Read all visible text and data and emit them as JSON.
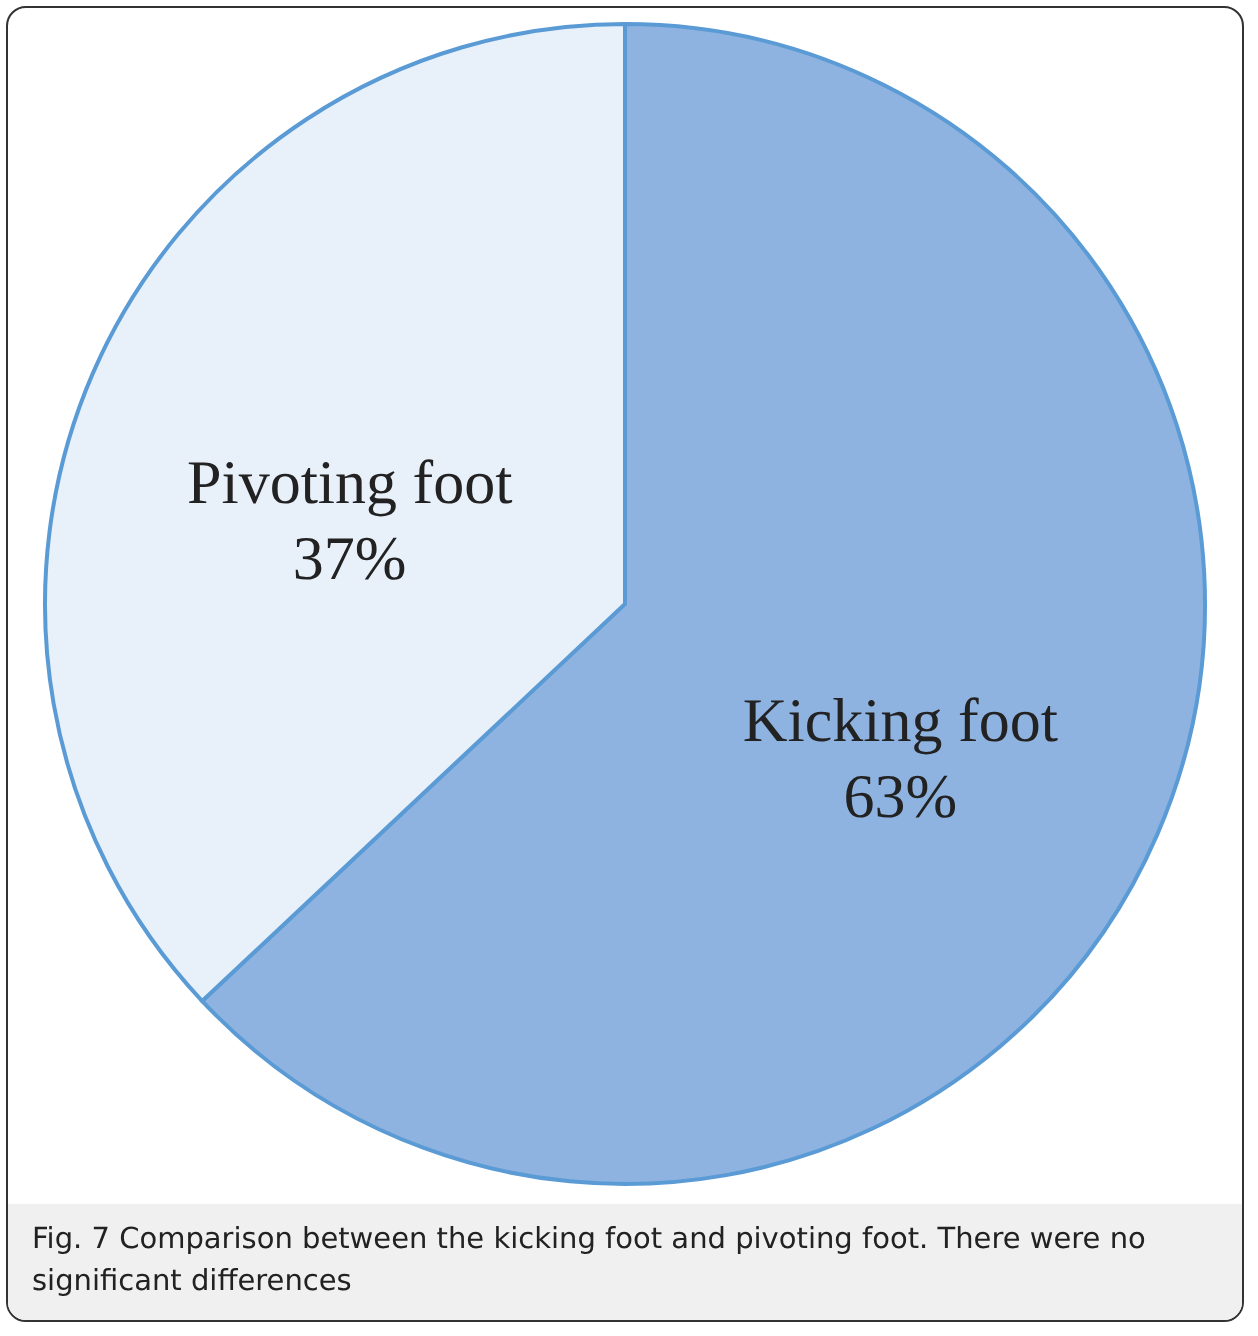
{
  "chart_data": {
    "type": "pie",
    "categories": [
      "Kicking foot",
      "Pivoting foot"
    ],
    "values": [
      63,
      37
    ],
    "colors": [
      "#8fb3e0",
      "#e8f0fa"
    ],
    "value_labels": [
      "63%",
      "37%"
    ],
    "annotations": [
      "Fig. 7 Comparison between the kicking foot and pivoting foot. There were no significant differences"
    ]
  }
}
